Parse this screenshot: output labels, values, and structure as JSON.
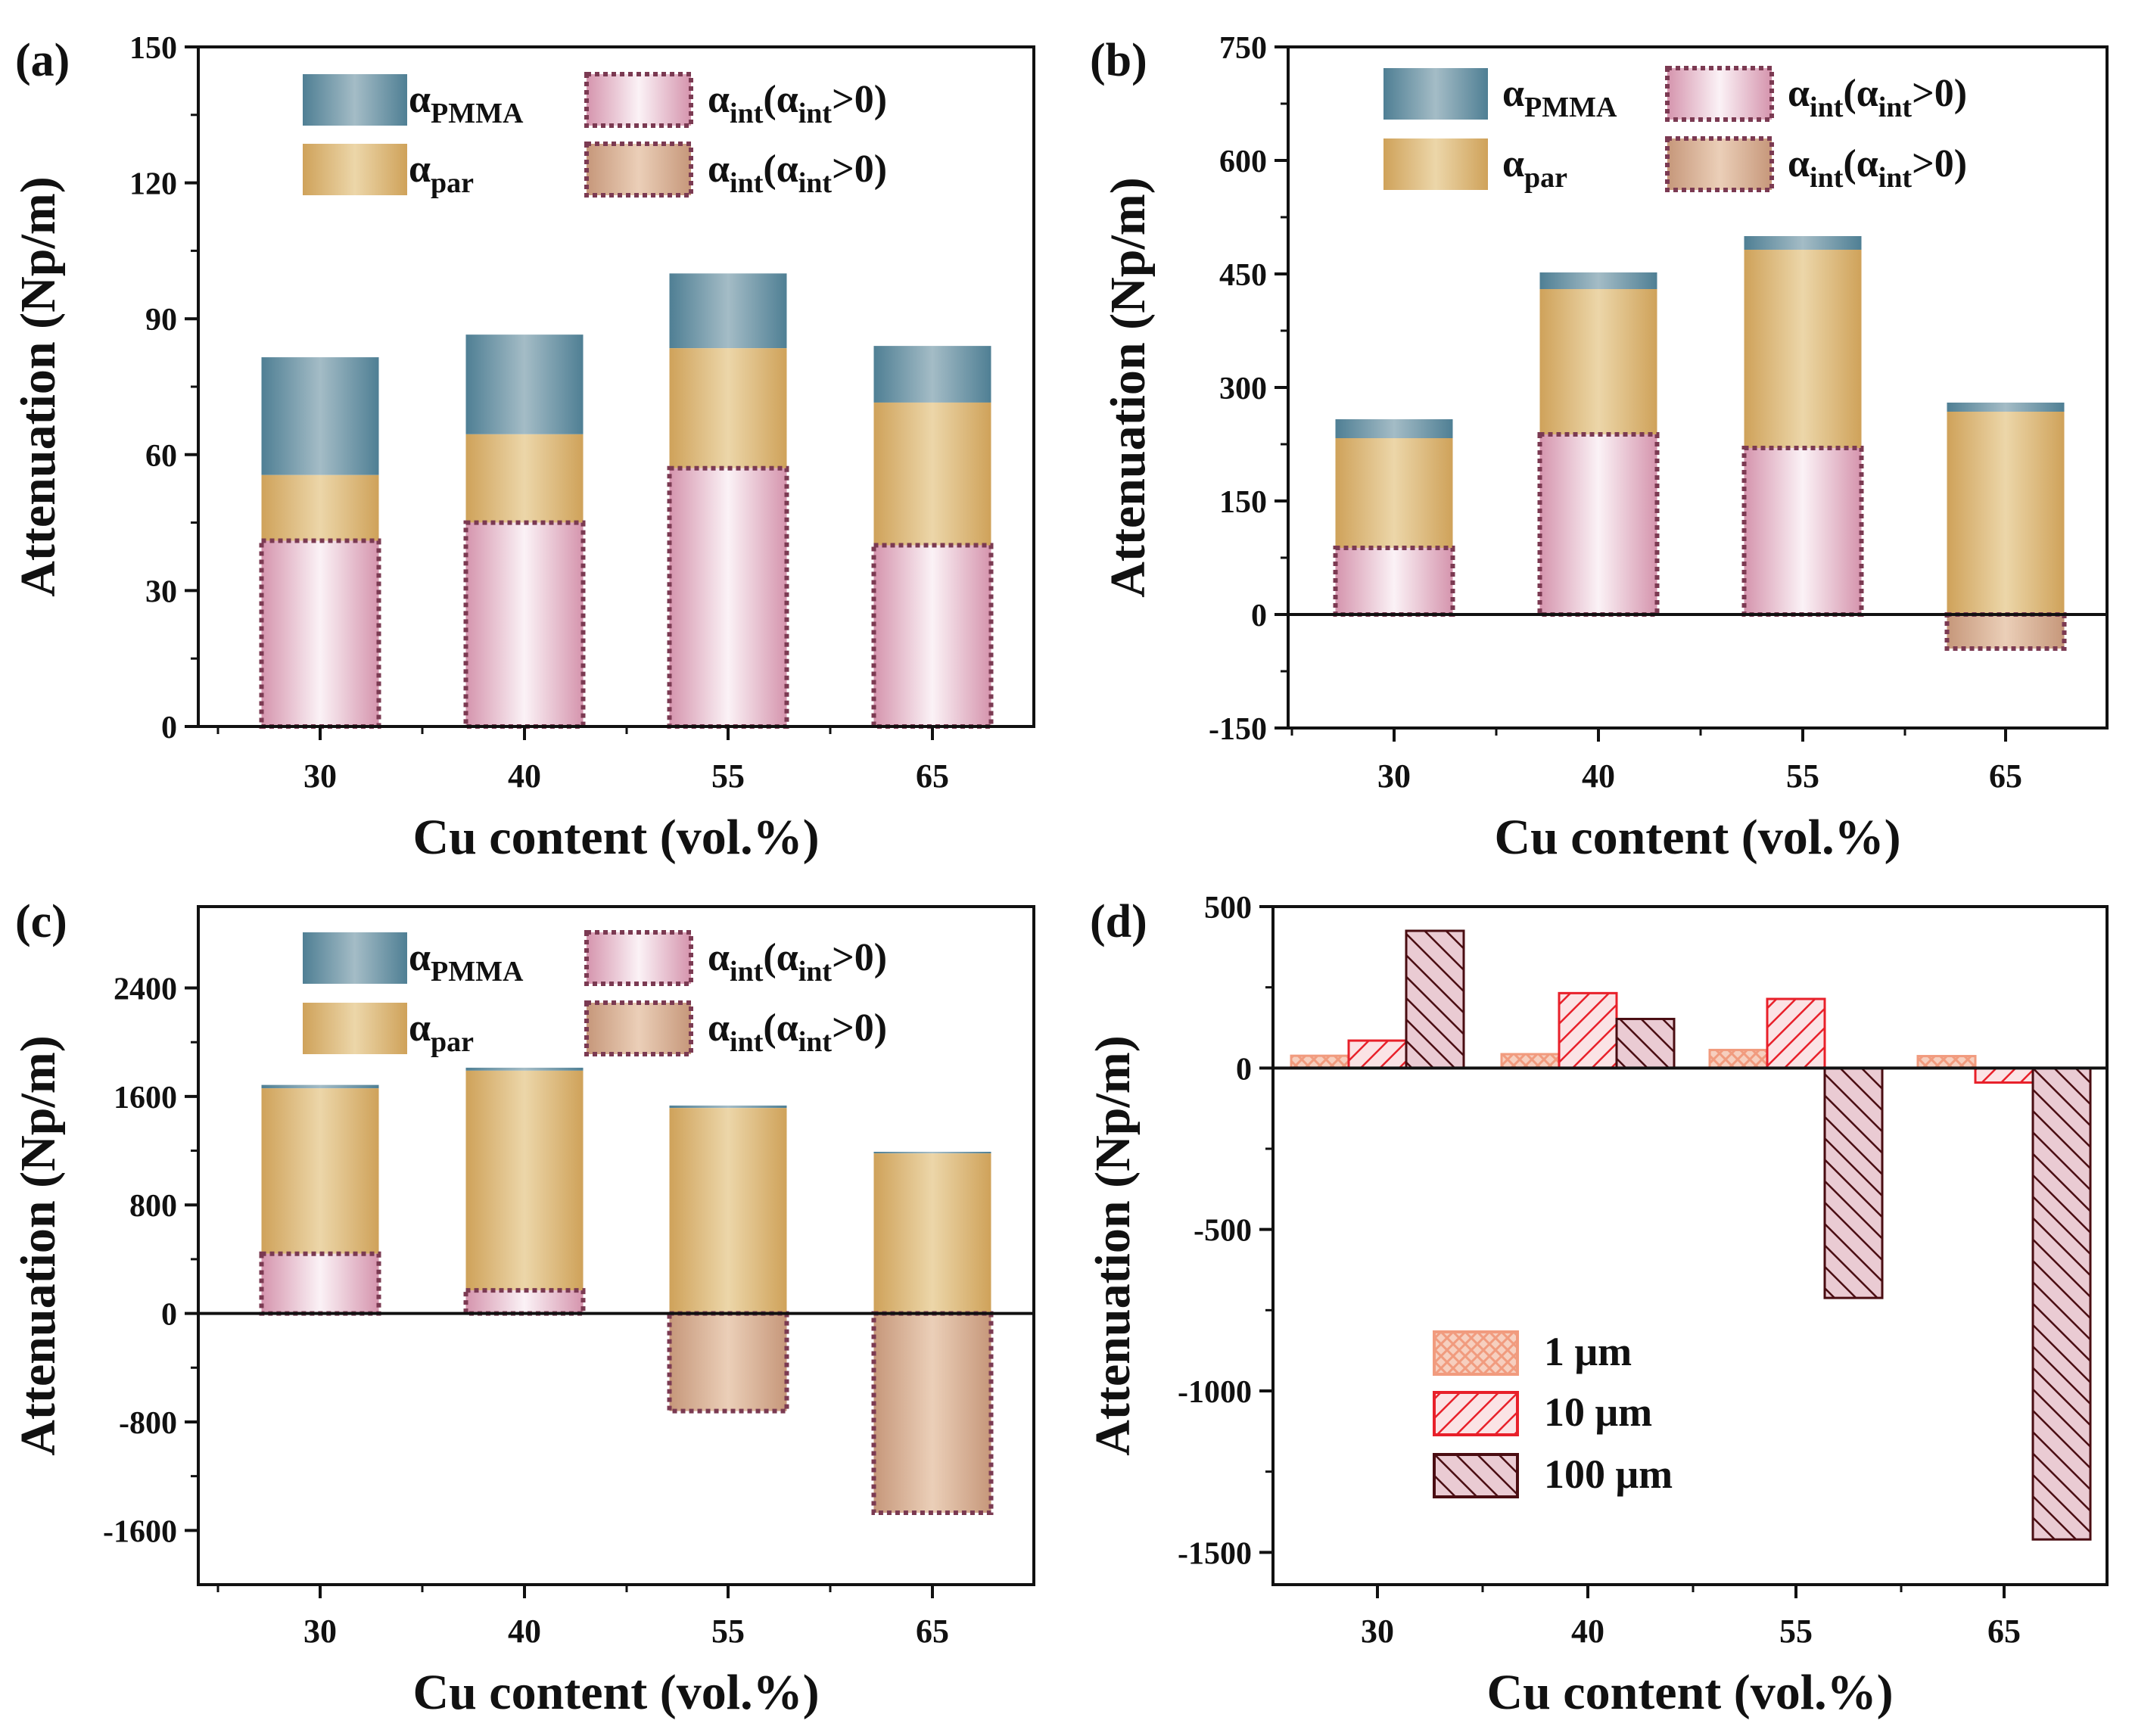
{
  "chart_data": [
    {
      "panel": "(a)",
      "type": "bar",
      "stacked": true,
      "xlabel": "Cu content (vol.%)",
      "ylabel": "Attenuation (Np/m)",
      "categories": [
        "30",
        "40",
        "55",
        "65"
      ],
      "yticks": [
        "0",
        "30",
        "60",
        "90",
        "120",
        "150"
      ],
      "ylim": [
        0,
        150
      ],
      "series": [
        {
          "name": "α_int (α_int>0)",
          "values": [
            41,
            45,
            57,
            40
          ]
        },
        {
          "name": "α_par",
          "values": [
            14.5,
            19.5,
            26.5,
            31.5
          ]
        },
        {
          "name": "α_PMMA",
          "values": [
            26,
            22,
            16.5,
            12.5
          ]
        }
      ],
      "legend": [
        {
          "key": "pmma",
          "main": "α",
          "sub": "PMMA",
          "tail": ""
        },
        {
          "key": "int_pos",
          "main": "α",
          "sub": "int",
          "tail": "(α",
          "sub2": "int",
          "tail2": ">0)"
        },
        {
          "key": "par",
          "main": "α",
          "sub": "par",
          "tail": ""
        },
        {
          "key": "int_neg",
          "main": "α",
          "sub": "int",
          "tail": "(α",
          "sub2": "int",
          "tail2": ">0)"
        }
      ]
    },
    {
      "panel": "(b)",
      "type": "bar",
      "stacked": true,
      "xlabel": "Cu content (vol.%)",
      "ylabel": "Attenuation (Np/m)",
      "categories": [
        "30",
        "40",
        "55",
        "65"
      ],
      "yticks": [
        "-150",
        "0",
        "150",
        "300",
        "450",
        "600",
        "750"
      ],
      "ylim": [
        -150,
        750
      ],
      "series": [
        {
          "name": "α_int",
          "values": [
            88,
            238,
            220,
            -45
          ]
        },
        {
          "name": "α_par",
          "values": [
            145,
            192,
            262,
            268
          ]
        },
        {
          "name": "α_PMMA",
          "values": [
            25,
            22,
            18,
            12
          ]
        }
      ],
      "legend": [
        {
          "key": "pmma",
          "main": "α",
          "sub": "PMMA",
          "tail": ""
        },
        {
          "key": "int_pos",
          "main": "α",
          "sub": "int",
          "tail": "(α",
          "sub2": "int",
          "tail2": ">0)"
        },
        {
          "key": "par",
          "main": "α",
          "sub": "par",
          "tail": ""
        },
        {
          "key": "int_neg",
          "main": "α",
          "sub": "int",
          "tail": "(α",
          "sub2": "int",
          "tail2": ">0)"
        }
      ]
    },
    {
      "panel": "(c)",
      "type": "bar",
      "stacked": true,
      "xlabel": "Cu content (vol.%)",
      "ylabel": "Attenuation (Np/m)",
      "categories": [
        "30",
        "40",
        "55",
        "65"
      ],
      "yticks": [
        "-1600",
        "-800",
        "0",
        "800",
        "1600",
        "2400"
      ],
      "ylim": [
        -2000,
        3000
      ],
      "series": [
        {
          "name": "α_int",
          "values": [
            440,
            170,
            -720,
            -1470
          ]
        },
        {
          "name": "α_par",
          "values": [
            1220,
            1620,
            1515,
            1180
          ]
        },
        {
          "name": "α_PMMA",
          "values": [
            25,
            22,
            18,
            12
          ]
        }
      ],
      "legend": [
        {
          "key": "pmma",
          "main": "α",
          "sub": "PMMA",
          "tail": ""
        },
        {
          "key": "int_pos",
          "main": "α",
          "sub": "int",
          "tail": "(α",
          "sub2": "int",
          "tail2": ">0)"
        },
        {
          "key": "par",
          "main": "α",
          "sub": "par",
          "tail": ""
        },
        {
          "key": "int_neg",
          "main": "α",
          "sub": "int",
          "tail": "(α",
          "sub2": "int",
          "tail2": ">0)"
        }
      ]
    },
    {
      "panel": "(d)",
      "type": "bar",
      "stacked": false,
      "xlabel": "Cu content (vol.%)",
      "ylabel": "Attenuation (Np/m)",
      "categories": [
        "30",
        "40",
        "55",
        "65"
      ],
      "yticks": [
        "-1500",
        "-1000",
        "-500",
        "0",
        "500"
      ],
      "ylim": [
        -1600,
        500
      ],
      "series": [
        {
          "name": "1 μm",
          "values": [
            38,
            43,
            56,
            37
          ]
        },
        {
          "name": "10 μm",
          "values": [
            85,
            232,
            214,
            -45
          ]
        },
        {
          "name": "100 μm",
          "values": [
            425,
            152,
            -712,
            -1460
          ]
        }
      ]
    }
  ],
  "colors": {
    "pmma": "#6c93a4",
    "par": "#d7b06c",
    "int_pos": "#f4d4e0",
    "int_neg": "#d7aa8d",
    "dotted_border": "#7b3a52",
    "d_1um": "#f2a88f",
    "d_10um": "#e8202a",
    "d_100um": "#6b1418"
  }
}
